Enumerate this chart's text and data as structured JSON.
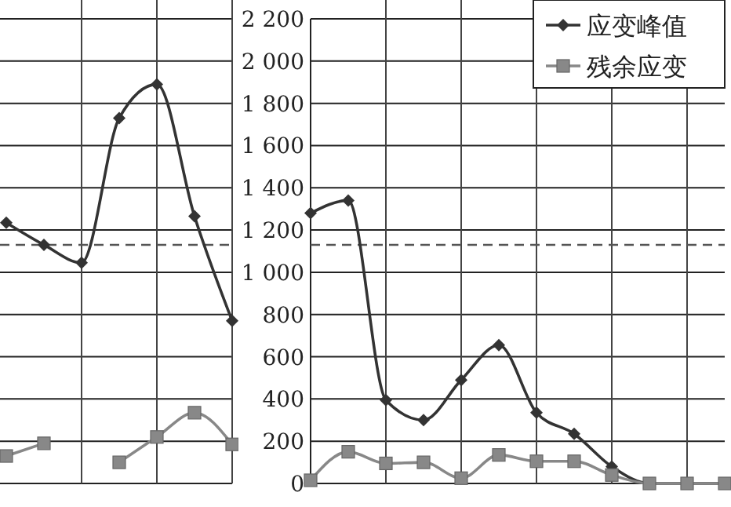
{
  "chart_data": [
    {
      "type": "line",
      "categories": [
        null,
        null,
        null,
        null,
        null,
        null,
        null
      ],
      "series": [
        {
          "color": "#333333",
          "marker": "diamond",
          "values": [
            1235,
            1130,
            1045,
            1730,
            1890,
            1265,
            770
          ]
        },
        {
          "color": "#888888",
          "marker": "square",
          "values": [
            130,
            190,
            null,
            100,
            220,
            335,
            185
          ]
        }
      ],
      "ylim": [
        0,
        2200
      ],
      "yticks": [
        0,
        200,
        400,
        600,
        800,
        1000,
        1200,
        1400,
        1600,
        1800,
        2000,
        2200
      ],
      "tick_labels": false,
      "ref_lines": [
        {
          "axis": "y",
          "value": 1130,
          "color": "#555555",
          "line_style": "dashed"
        }
      ],
      "grid": true
    },
    {
      "type": "line",
      "categories": [
        null,
        null,
        null,
        null,
        null,
        null,
        null,
        null,
        null,
        null,
        null,
        null
      ],
      "series": [
        {
          "name": "应变峰值",
          "color": "#333333",
          "marker": "diamond",
          "values": [
            1280,
            1340,
            395,
            300,
            490,
            655,
            335,
            235,
            80,
            0,
            0,
            0
          ]
        },
        {
          "name": "残余应变",
          "color": "#888888",
          "marker": "square",
          "values": [
            15,
            150,
            95,
            100,
            25,
            135,
            105,
            105,
            40,
            0,
            0,
            0
          ]
        }
      ],
      "ylim": [
        0,
        2200
      ],
      "yticks": [
        0,
        200,
        400,
        600,
        800,
        {
          "value": 1000,
          "label": "1 000"
        },
        {
          "value": 1200,
          "label": "1 200"
        },
        {
          "value": 1400,
          "label": "1 400"
        },
        {
          "value": 1600,
          "label": "1 600"
        },
        {
          "value": 1800,
          "label": "1 800"
        },
        {
          "value": 2000,
          "label": "2 000"
        },
        {
          "value": 2200,
          "label": "2 200"
        }
      ],
      "ref_lines": [
        {
          "axis": "y",
          "value": 1130,
          "color": "#555555",
          "line_style": "dashed"
        }
      ],
      "grid": true,
      "legend": "top right"
    }
  ]
}
